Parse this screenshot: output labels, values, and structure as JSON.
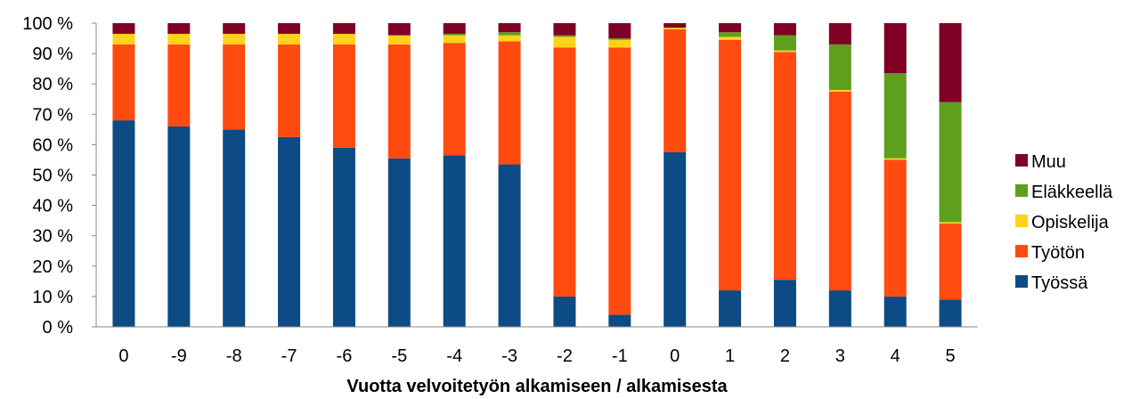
{
  "chart_data": {
    "type": "bar",
    "stacked": true,
    "categories": [
      "0",
      "-9",
      "-8",
      "-7",
      "-6",
      "-5",
      "-4",
      "-3",
      "-2",
      "-1",
      "0",
      "1",
      "2",
      "3",
      "4",
      "5"
    ],
    "series": [
      {
        "name": "Työssä",
        "color": "#0c4b84",
        "values": [
          68,
          66,
          65,
          62.5,
          59,
          55.5,
          56.5,
          53.5,
          10,
          4,
          57.5,
          12,
          15.5,
          12,
          10,
          9
        ]
      },
      {
        "name": "Työtön",
        "color": "#ff4a10",
        "values": [
          25,
          27,
          28,
          30.5,
          34,
          37.5,
          37,
          40.5,
          82,
          88,
          40.5,
          82.5,
          75,
          65.5,
          45,
          25
        ]
      },
      {
        "name": "Opiskelija",
        "color": "#ffd21a",
        "values": [
          3.5,
          3.5,
          3.5,
          3.5,
          3.5,
          3,
          2.5,
          2,
          3.5,
          2.5,
          0.5,
          1,
          0.5,
          0.5,
          0.5,
          0.5
        ]
      },
      {
        "name": "Eläkkeellä",
        "color": "#5e9f1e",
        "values": [
          0,
          0,
          0,
          0,
          0,
          0,
          0.5,
          1,
          0.5,
          0.5,
          0,
          1.5,
          5,
          15,
          28,
          39.5
        ]
      },
      {
        "name": "Muu",
        "color": "#7f0024",
        "values": [
          3.5,
          3.5,
          3.5,
          3.5,
          3.5,
          4,
          3.5,
          3,
          4,
          5,
          1.5,
          3,
          4,
          7,
          16.5,
          26
        ]
      }
    ],
    "yticks": [
      "0 %",
      "10 %",
      "20 %",
      "30 %",
      "40 %",
      "50 %",
      "60 %",
      "70 %",
      "80 %",
      "90 %",
      "100 %"
    ],
    "ylim": [
      0,
      100
    ],
    "xlabel": "Vuotta velvoitetyön alkamiseen / alkamisesta",
    "ylabel": "",
    "title": "",
    "grid": false,
    "legend_position": "right",
    "legend_order": [
      "Muu",
      "Eläkkeellä",
      "Opiskelija",
      "Työtön",
      "Työssä"
    ]
  }
}
